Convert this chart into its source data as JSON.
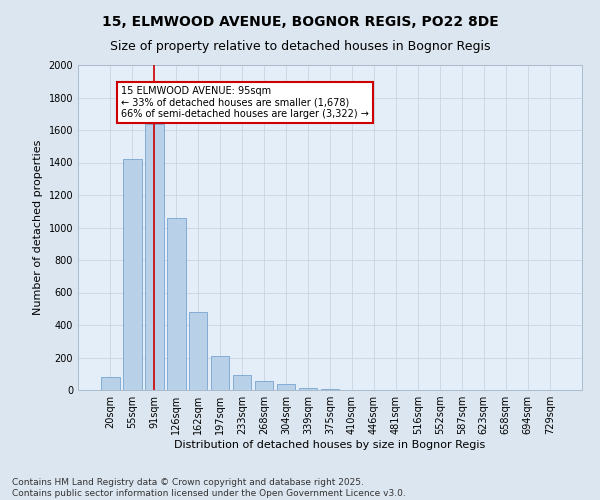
{
  "title1": "15, ELMWOOD AVENUE, BOGNOR REGIS, PO22 8DE",
  "title2": "Size of property relative to detached houses in Bognor Regis",
  "xlabel": "Distribution of detached houses by size in Bognor Regis",
  "ylabel": "Number of detached properties",
  "categories": [
    "20sqm",
    "55sqm",
    "91sqm",
    "126sqm",
    "162sqm",
    "197sqm",
    "233sqm",
    "268sqm",
    "304sqm",
    "339sqm",
    "375sqm",
    "410sqm",
    "446sqm",
    "481sqm",
    "516sqm",
    "552sqm",
    "587sqm",
    "623sqm",
    "658sqm",
    "694sqm",
    "729sqm"
  ],
  "values": [
    80,
    1420,
    1640,
    1060,
    480,
    210,
    90,
    55,
    35,
    15,
    5,
    2,
    0,
    0,
    0,
    0,
    0,
    0,
    0,
    0,
    0
  ],
  "bar_color": "#b8d0e8",
  "bar_edge_color": "#6699cc",
  "vline_x": 2,
  "vline_color": "#cc0000",
  "annotation_title": "15 ELMWOOD AVENUE: 95sqm",
  "annotation_line1": "← 33% of detached houses are smaller (1,678)",
  "annotation_line2": "66% of semi-detached houses are larger (3,322) →",
  "annotation_box_color": "#cc0000",
  "ylim": [
    0,
    2000
  ],
  "yticks": [
    0,
    200,
    400,
    600,
    800,
    1000,
    1200,
    1400,
    1600,
    1800,
    2000
  ],
  "grid_color": "#c8d4e0",
  "bg_color": "#dce6f0",
  "plot_bg_color": "#e4eef8",
  "footer1": "Contains HM Land Registry data © Crown copyright and database right 2025.",
  "footer2": "Contains public sector information licensed under the Open Government Licence v3.0.",
  "title1_fontsize": 10,
  "title2_fontsize": 9,
  "axis_label_fontsize": 8,
  "tick_fontsize": 7,
  "annotation_fontsize": 7,
  "footer_fontsize": 6.5
}
